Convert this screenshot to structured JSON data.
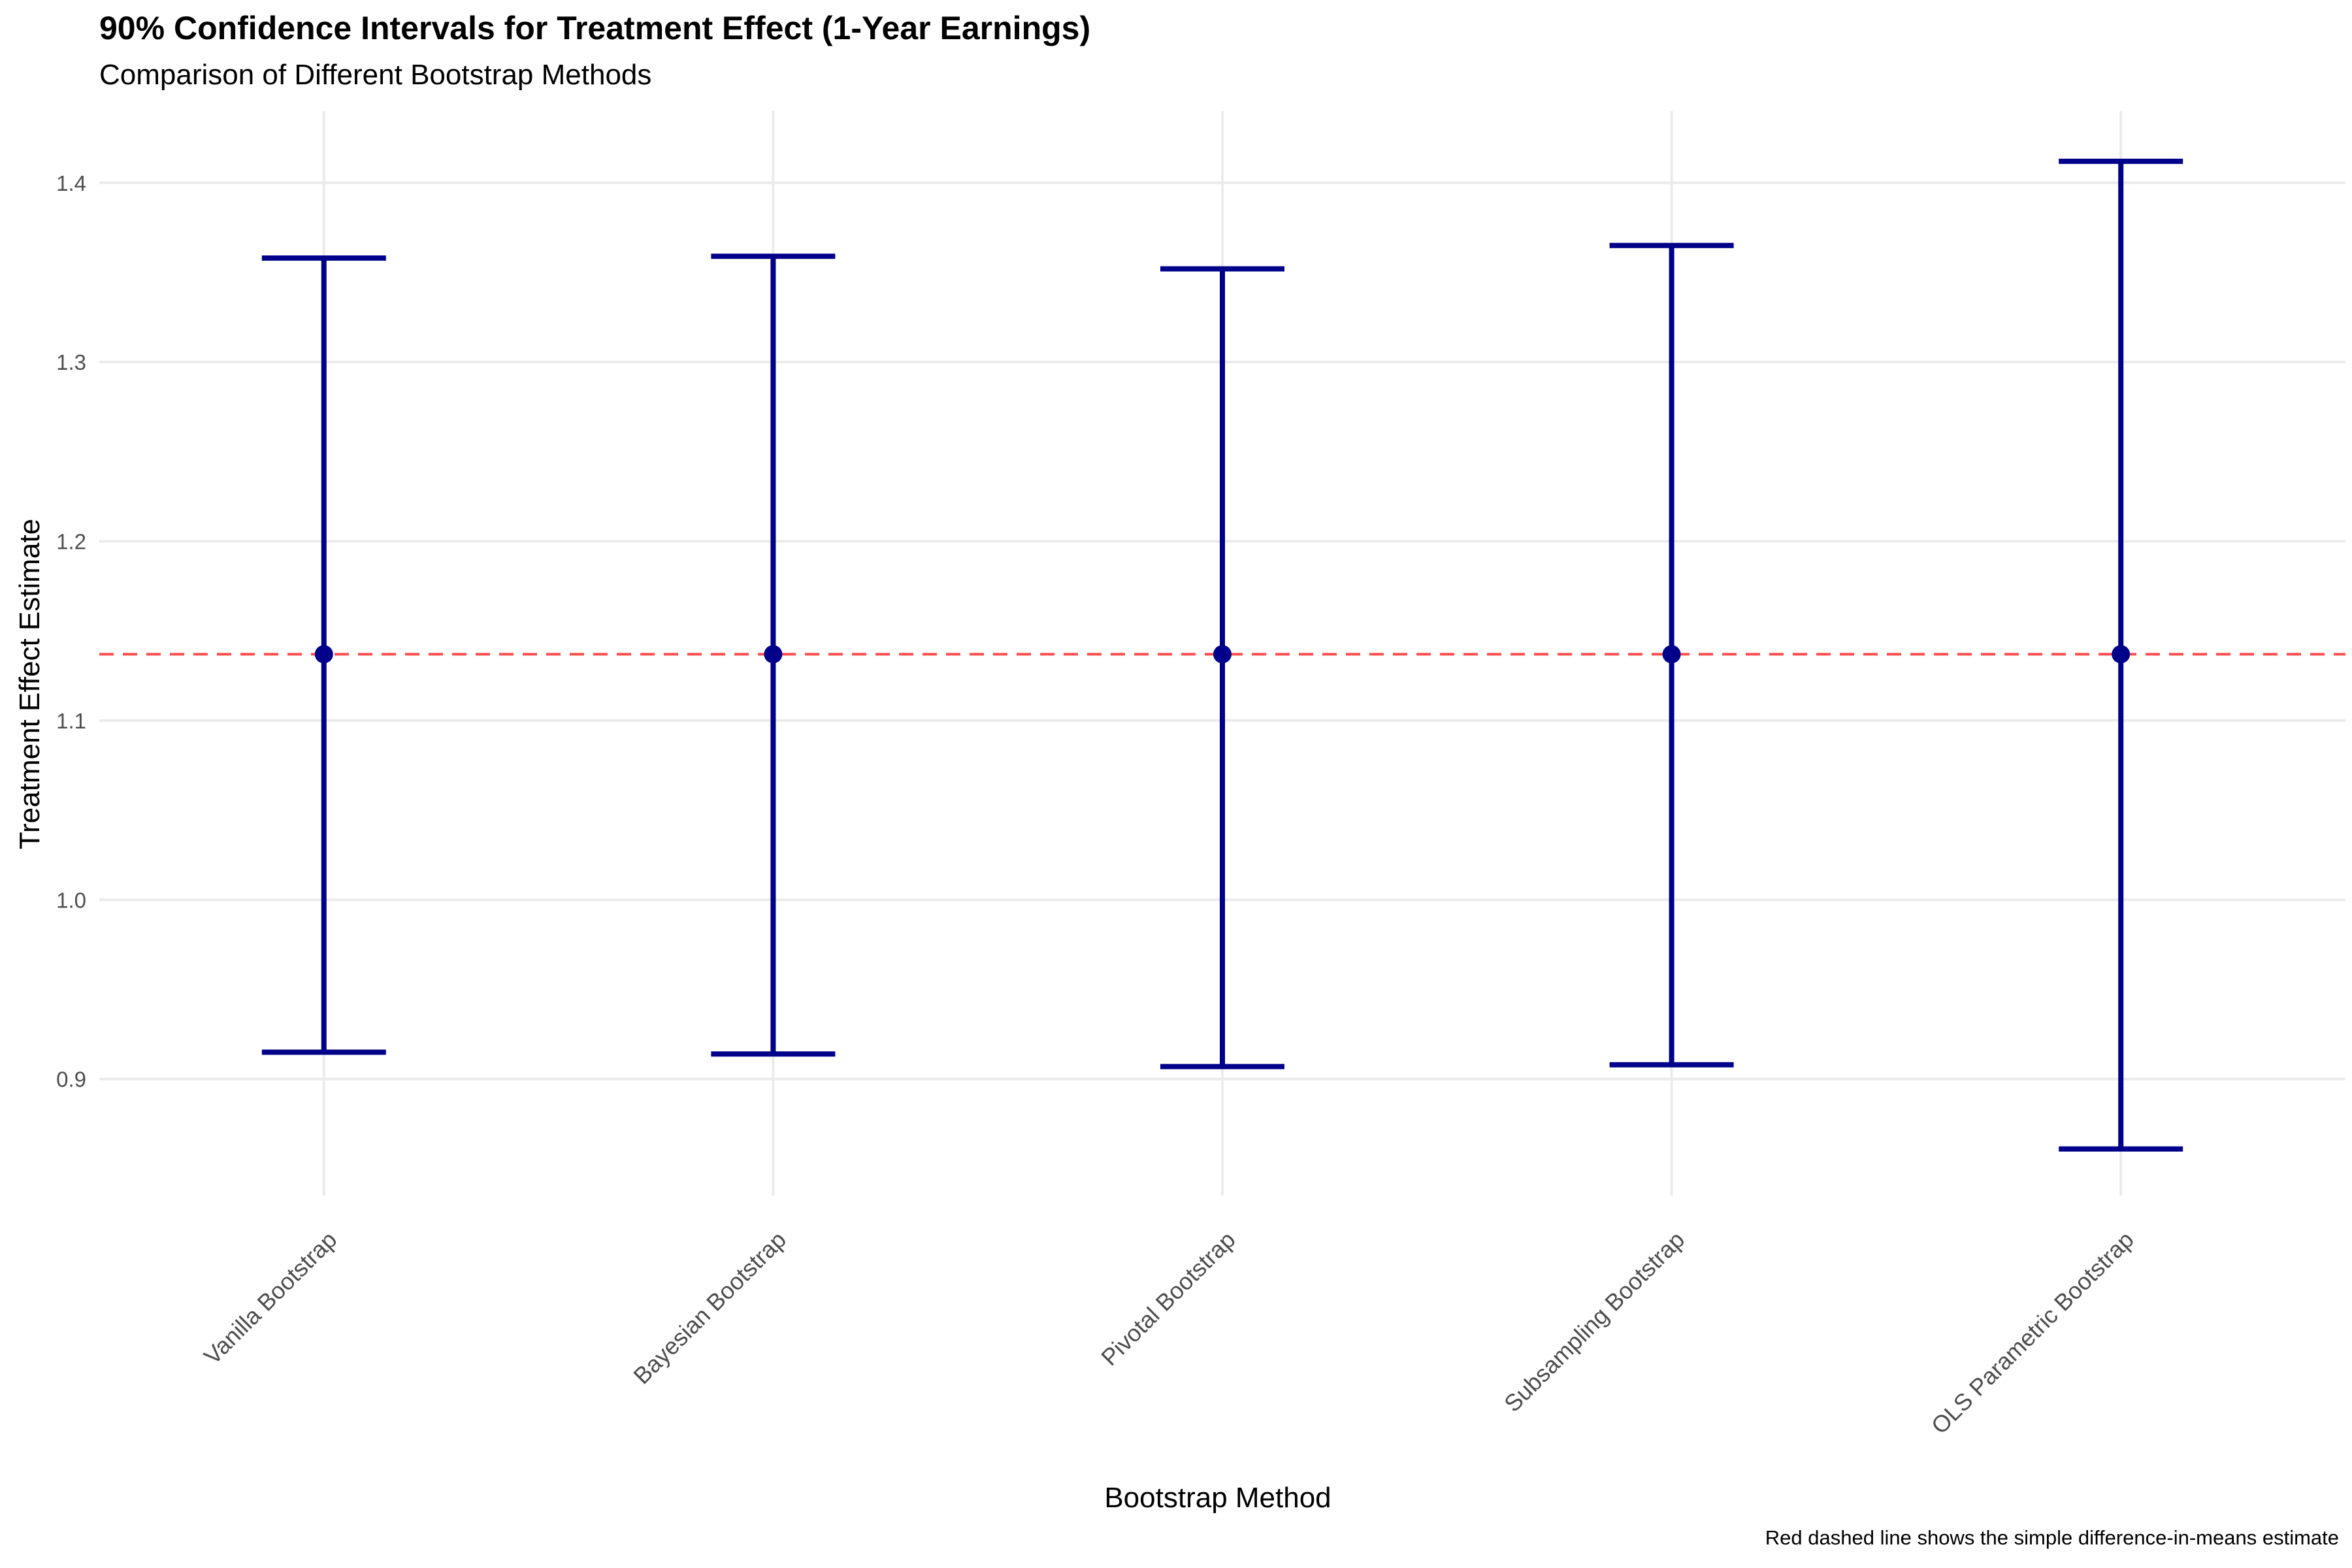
{
  "chart_data": {
    "type": "errorbar",
    "title": "90% Confidence Intervals for Treatment Effect (1-Year Earnings)",
    "subtitle": "Comparison of Different Bootstrap Methods",
    "xlabel": "Bootstrap Method",
    "ylabel": "Treatment Effect Estimate",
    "caption": "Red dashed line shows the simple difference-in-means estimate",
    "categories": [
      "Vanilla Bootstrap",
      "Bayesian Bootstrap",
      "Pivotal Bootstrap",
      "Subsampling Bootstrap",
      "OLS Parametric Bootstrap"
    ],
    "estimate": [
      1.137,
      1.137,
      1.137,
      1.137,
      1.137
    ],
    "lower": [
      0.915,
      0.914,
      0.907,
      0.908,
      0.861
    ],
    "upper": [
      1.358,
      1.359,
      1.352,
      1.365,
      1.412
    ],
    "reference_line": 1.137,
    "yticks": [
      0.9,
      1.0,
      1.1,
      1.2,
      1.3,
      1.4
    ],
    "ytick_labels": [
      "0.9",
      "1.0",
      "1.1",
      "1.2",
      "1.3",
      "1.4"
    ],
    "ylim": [
      0.835,
      1.44
    ],
    "grid": true,
    "colors": {
      "interval": "#00008B",
      "reference": "#FF0000",
      "grid": "#EBEBEB",
      "tick_text": "#4D4D4D"
    }
  }
}
